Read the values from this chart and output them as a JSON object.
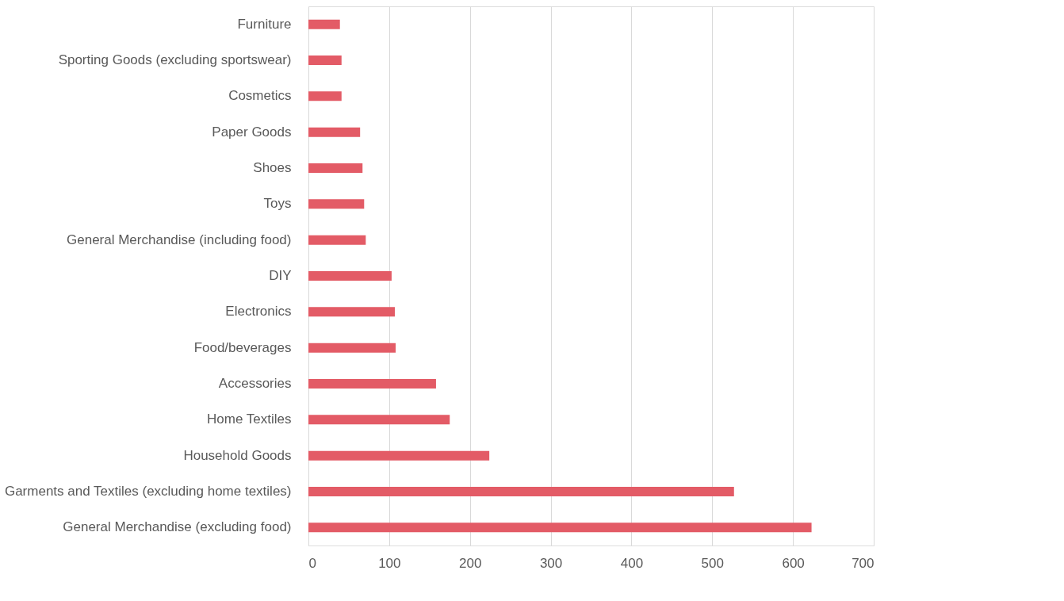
{
  "chart_data": {
    "type": "bar",
    "orientation": "horizontal",
    "categories": [
      "Furniture",
      "Sporting Goods (excluding sportswear)",
      "Cosmetics",
      "Paper Goods",
      "Shoes",
      "Toys",
      "General Merchandise (including food)",
      "DIY",
      "Electronics",
      "Food/beverages",
      "Accessories",
      "Home Textiles",
      "Household Goods",
      "Garments and Textiles (excluding home textiles)",
      "General Merchandise (excluding food)"
    ],
    "values": [
      39,
      41,
      41,
      64,
      67,
      69,
      71,
      103,
      107,
      108,
      158,
      175,
      224,
      527,
      623
    ],
    "color": "#e35b66",
    "xlim": [
      0,
      700
    ],
    "xticks": [
      0,
      100,
      200,
      300,
      400,
      500,
      600,
      700
    ],
    "grid": "x"
  }
}
